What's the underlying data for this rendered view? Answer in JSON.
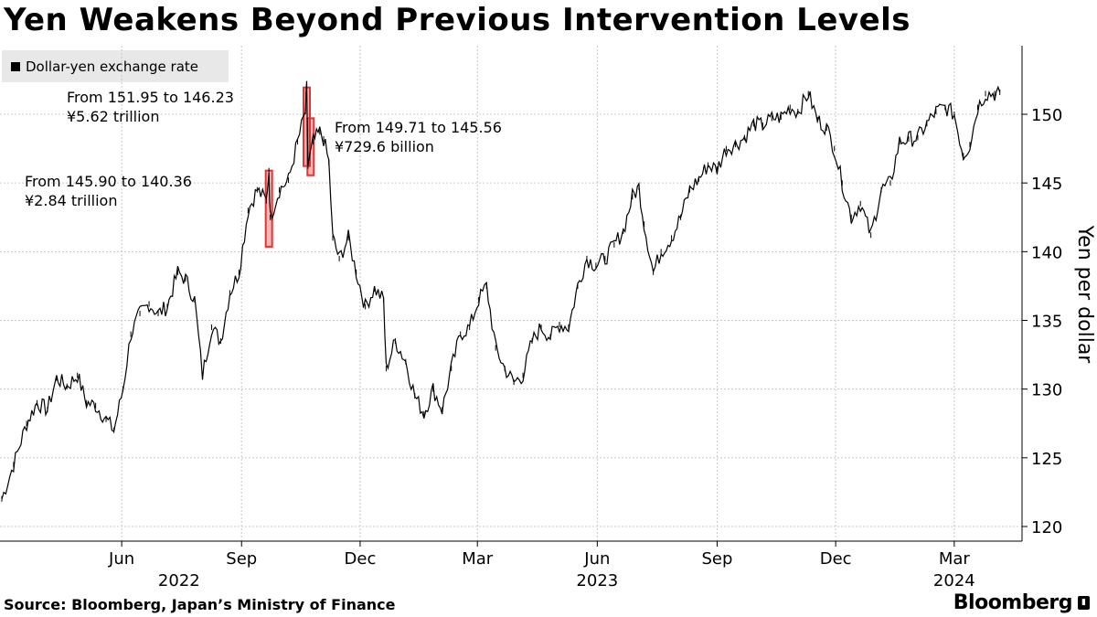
{
  "title": "Yen Weakens Beyond Previous Intervention Levels",
  "source": "Source: Bloomberg, Japan’s Ministry of Finance",
  "brand": "Bloomberg",
  "chart_data": {
    "type": "line",
    "title": "Yen Weakens Beyond Previous Intervention Levels",
    "ylabel": "Yen per dollar",
    "xlabel": "",
    "ylim": [
      118,
      154
    ],
    "yticks": [
      120,
      125,
      130,
      135,
      140,
      145,
      150
    ],
    "xticks": [
      {
        "label": "Jun",
        "date": "2022-06-01"
      },
      {
        "label": "Sep",
        "date": "2022-09-01"
      },
      {
        "label": "Dec",
        "date": "2022-12-01"
      },
      {
        "label": "Mar",
        "date": "2023-03-01"
      },
      {
        "label": "Jun",
        "date": "2023-06-01"
      },
      {
        "label": "Sep",
        "date": "2023-09-01"
      },
      {
        "label": "Dec",
        "date": "2023-12-01"
      },
      {
        "label": "Mar",
        "date": "2024-03-01"
      }
    ],
    "year_labels": [
      {
        "label": "2022",
        "date": "2022-07-15"
      },
      {
        "label": "2023",
        "date": "2023-06-01"
      },
      {
        "label": "2024",
        "date": "2024-03-01"
      }
    ],
    "grid": true,
    "legend_position": "top-left",
    "line_color": "#000000",
    "highlight_color": "#e63232",
    "series": [
      {
        "name": "Dollar-yen exchange rate",
        "points": [
          [
            "2022-03-01",
            122.0
          ],
          [
            "2022-03-10",
            124.5
          ],
          [
            "2022-03-20",
            127.5
          ],
          [
            "2022-03-28",
            129.0
          ],
          [
            "2022-04-05",
            128.5
          ],
          [
            "2022-04-12",
            130.8
          ],
          [
            "2022-04-20",
            130.2
          ],
          [
            "2022-04-28",
            131.0
          ],
          [
            "2022-05-05",
            129.0
          ],
          [
            "2022-05-12",
            128.8
          ],
          [
            "2022-05-20",
            127.8
          ],
          [
            "2022-05-26",
            127.0
          ],
          [
            "2022-06-02",
            130.0
          ],
          [
            "2022-06-08",
            134.0
          ],
          [
            "2022-06-15",
            135.5
          ],
          [
            "2022-06-22",
            136.2
          ],
          [
            "2022-06-29",
            135.5
          ],
          [
            "2022-07-06",
            136.0
          ],
          [
            "2022-07-14",
            138.5
          ],
          [
            "2022-07-20",
            138.0
          ],
          [
            "2022-07-27",
            136.5
          ],
          [
            "2022-08-02",
            131.0
          ],
          [
            "2022-08-09",
            134.5
          ],
          [
            "2022-08-16",
            133.5
          ],
          [
            "2022-08-23",
            137.0
          ],
          [
            "2022-08-30",
            138.5
          ],
          [
            "2022-09-06",
            143.0
          ],
          [
            "2022-09-13",
            144.5
          ],
          [
            "2022-09-20",
            143.7
          ],
          [
            "2022-09-22",
            145.9
          ],
          [
            "2022-09-23",
            142.5
          ],
          [
            "2022-09-30",
            144.5
          ],
          [
            "2022-10-07",
            145.2
          ],
          [
            "2022-10-14",
            148.0
          ],
          [
            "2022-10-20",
            150.2
          ],
          [
            "2022-10-21",
            151.95
          ],
          [
            "2022-10-22",
            146.23
          ],
          [
            "2022-10-26",
            148.0
          ],
          [
            "2022-10-31",
            148.7
          ],
          [
            "2022-11-03",
            148.2
          ],
          [
            "2022-11-07",
            146.5
          ],
          [
            "2022-11-10",
            141.0
          ],
          [
            "2022-11-15",
            139.5
          ],
          [
            "2022-11-22",
            141.0
          ],
          [
            "2022-11-28",
            138.5
          ],
          [
            "2022-12-05",
            136.0
          ],
          [
            "2022-12-12",
            137.3
          ],
          [
            "2022-12-19",
            136.5
          ],
          [
            "2022-12-21",
            131.5
          ],
          [
            "2022-12-28",
            133.5
          ],
          [
            "2023-01-05",
            132.0
          ],
          [
            "2023-01-12",
            129.5
          ],
          [
            "2023-01-19",
            128.2
          ],
          [
            "2023-01-26",
            130.0
          ],
          [
            "2023-02-02",
            128.5
          ],
          [
            "2023-02-09",
            131.5
          ],
          [
            "2023-02-16",
            134.0
          ],
          [
            "2023-02-23",
            134.5
          ],
          [
            "2023-03-02",
            136.5
          ],
          [
            "2023-03-08",
            137.5
          ],
          [
            "2023-03-15",
            133.0
          ],
          [
            "2023-03-22",
            131.5
          ],
          [
            "2023-03-29",
            130.5
          ],
          [
            "2023-04-05",
            131.0
          ],
          [
            "2023-04-12",
            133.5
          ],
          [
            "2023-04-19",
            134.5
          ],
          [
            "2023-04-26",
            133.8
          ],
          [
            "2023-05-03",
            134.7
          ],
          [
            "2023-05-10",
            134.5
          ],
          [
            "2023-05-17",
            137.5
          ],
          [
            "2023-05-24",
            139.5
          ],
          [
            "2023-05-31",
            139.0
          ],
          [
            "2023-06-07",
            139.5
          ],
          [
            "2023-06-14",
            140.5
          ],
          [
            "2023-06-21",
            141.5
          ],
          [
            "2023-06-28",
            144.0
          ],
          [
            "2023-07-03",
            144.7
          ],
          [
            "2023-07-07",
            142.0
          ],
          [
            "2023-07-14",
            138.5
          ],
          [
            "2023-07-20",
            140.0
          ],
          [
            "2023-07-28",
            141.0
          ],
          [
            "2023-08-04",
            142.5
          ],
          [
            "2023-08-11",
            144.5
          ],
          [
            "2023-08-18",
            145.3
          ],
          [
            "2023-08-25",
            146.3
          ],
          [
            "2023-09-01",
            146.0
          ],
          [
            "2023-09-08",
            147.5
          ],
          [
            "2023-09-15",
            147.8
          ],
          [
            "2023-09-22",
            148.3
          ],
          [
            "2023-09-29",
            149.3
          ],
          [
            "2023-10-06",
            149.2
          ],
          [
            "2023-10-13",
            149.7
          ],
          [
            "2023-10-20",
            149.8
          ],
          [
            "2023-10-27",
            150.5
          ],
          [
            "2023-11-02",
            150.2
          ],
          [
            "2023-11-10",
            151.5
          ],
          [
            "2023-11-17",
            149.6
          ],
          [
            "2023-11-24",
            149.0
          ],
          [
            "2023-11-30",
            147.5
          ],
          [
            "2023-12-06",
            145.0
          ],
          [
            "2023-12-13",
            142.5
          ],
          [
            "2023-12-20",
            143.5
          ],
          [
            "2023-12-28",
            141.2
          ],
          [
            "2024-01-05",
            144.5
          ],
          [
            "2024-01-12",
            145.0
          ],
          [
            "2024-01-19",
            148.0
          ],
          [
            "2024-01-26",
            148.2
          ],
          [
            "2024-02-02",
            148.3
          ],
          [
            "2024-02-09",
            149.3
          ],
          [
            "2024-02-16",
            150.2
          ],
          [
            "2024-02-23",
            150.5
          ],
          [
            "2024-03-01",
            150.0
          ],
          [
            "2024-03-08",
            147.0
          ],
          [
            "2024-03-13",
            147.8
          ],
          [
            "2024-03-19",
            150.5
          ],
          [
            "2024-03-25",
            151.5
          ],
          [
            "2024-04-01",
            151.5
          ],
          [
            "2024-04-05",
            151.6
          ]
        ]
      }
    ],
    "interventions": [
      {
        "date": "2022-09-22",
        "from": 145.9,
        "to": 140.36
      },
      {
        "date": "2022-10-21",
        "from": 151.95,
        "to": 146.23
      },
      {
        "date": "2022-10-24",
        "from": 149.71,
        "to": 145.56
      }
    ],
    "annotations": [
      {
        "line1": "From 145.90 to 140.36",
        "line2": "¥2.84 trillion"
      },
      {
        "line1": "From 151.95 to 146.23",
        "line2": "¥5.62 trillion"
      },
      {
        "line1": "From 149.71 to 145.56",
        "line2": "¥729.6 billion"
      }
    ]
  }
}
